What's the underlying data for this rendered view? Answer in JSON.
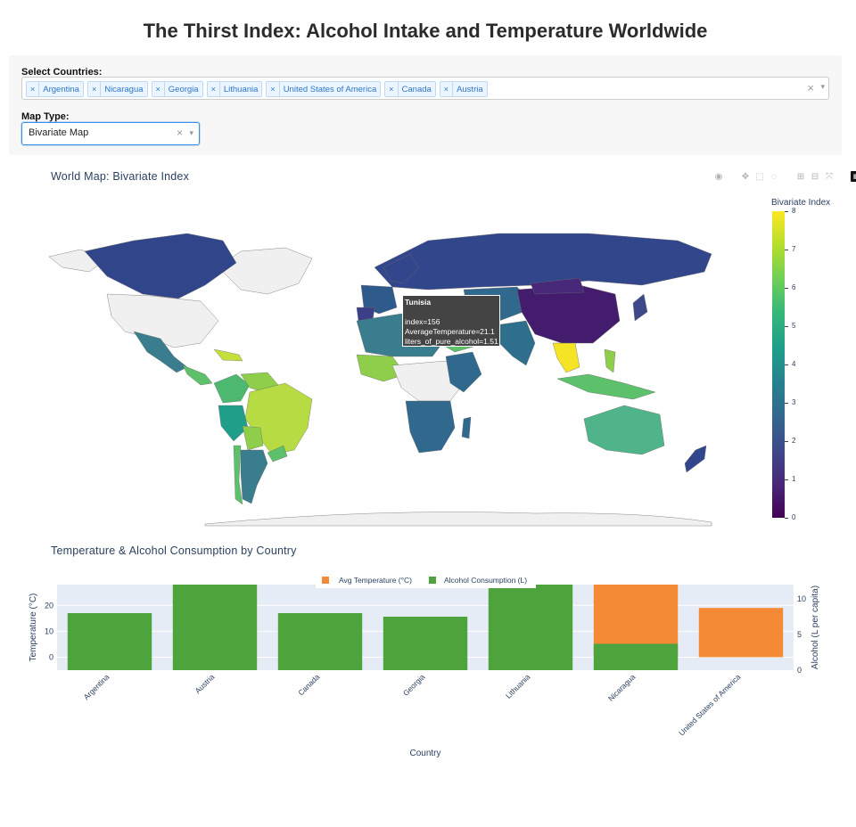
{
  "page_title": "The Thirst Index: Alcohol Intake and Temperature Worldwide",
  "controls": {
    "countries_label": "Select Countries:",
    "selected_countries": [
      "Argentina",
      "Nicaragua",
      "Georgia",
      "Lithuania",
      "United States of America",
      "Canada",
      "Austria"
    ],
    "chip_remove_glyph": "×",
    "clear_glyph": "×",
    "arrow_glyph": "▾",
    "map_type_label": "Map Type:",
    "map_type_value": "Bivariate Map"
  },
  "map": {
    "title": "World Map: Bivariate Index",
    "colorbar_title": "Bivariate Index",
    "colorbar_ticks": [
      0,
      1,
      2,
      3,
      4,
      5,
      6,
      7,
      8
    ],
    "colorscale": [
      "#440154",
      "#482878",
      "#3e4989",
      "#31688e",
      "#26828e",
      "#1f9e89",
      "#35b779",
      "#6ece58",
      "#b5de2b",
      "#fde725"
    ],
    "modebar_icons": [
      "camera-icon",
      "pan-icon",
      "box-select-icon",
      "lasso-icon",
      "zoom-in-icon",
      "zoom-out-icon",
      "reset-icon",
      "plotly-logo-icon"
    ],
    "tooltip": {
      "country": "Tunisia",
      "line1": "index=156",
      "line2": "AverageTemperature=21.1",
      "line3": "liters_of_pure_alcohol=1.51"
    }
  },
  "bar_chart_title": "Temperature & Alcohol Consumption by Country",
  "chart_data": {
    "type": "bar",
    "categories": [
      "Argentina",
      "Austria",
      "Canada",
      "Georgia",
      "Lithuania",
      "Nicaragua",
      "United States of America"
    ],
    "series": [
      {
        "name": "Avg Temperature (°C)",
        "color": "#f58a36",
        "axis": "y",
        "values": [
          null,
          null,
          null,
          null,
          null,
          28,
          19
        ]
      },
      {
        "name": "Alcohol Consumption (L)",
        "color": "#4ea43c",
        "axis": "y2",
        "values": [
          8,
          12,
          8,
          7.5,
          12,
          3.7,
          null
        ]
      }
    ],
    "xlabel": "Country",
    "ylabel": "Temperature (°C)",
    "y2label": "Alcohol (L per capita)",
    "ylim": [
      -5,
      28
    ],
    "y2lim": [
      0,
      12
    ],
    "yticks": [
      0,
      10,
      20
    ],
    "y2ticks": [
      0,
      5,
      10
    ],
    "grid": true,
    "legend": "top-center"
  }
}
